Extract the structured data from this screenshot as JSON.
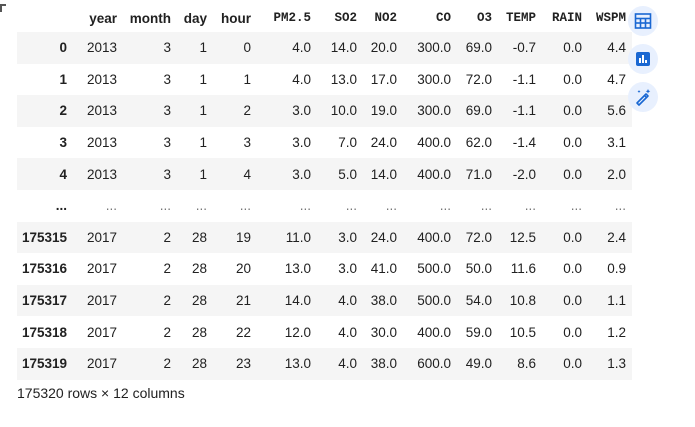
{
  "dataframe": {
    "columns": [
      "year",
      "month",
      "day",
      "hour",
      "PM2.5",
      "SO2",
      "NO2",
      "CO",
      "O3",
      "TEMP",
      "RAIN",
      "WSPM"
    ],
    "rows": [
      {
        "index": "0",
        "cells": [
          "2013",
          "3",
          "1",
          "0",
          "4.0",
          "14.0",
          "20.0",
          "300.0",
          "69.0",
          "-0.7",
          "0.0",
          "4.4"
        ]
      },
      {
        "index": "1",
        "cells": [
          "2013",
          "3",
          "1",
          "1",
          "4.0",
          "13.0",
          "17.0",
          "300.0",
          "72.0",
          "-1.1",
          "0.0",
          "4.7"
        ]
      },
      {
        "index": "2",
        "cells": [
          "2013",
          "3",
          "1",
          "2",
          "3.0",
          "10.0",
          "19.0",
          "300.0",
          "69.0",
          "-1.1",
          "0.0",
          "5.6"
        ]
      },
      {
        "index": "3",
        "cells": [
          "2013",
          "3",
          "1",
          "3",
          "3.0",
          "7.0",
          "24.0",
          "400.0",
          "62.0",
          "-1.4",
          "0.0",
          "3.1"
        ]
      },
      {
        "index": "4",
        "cells": [
          "2013",
          "3",
          "1",
          "4",
          "3.0",
          "5.0",
          "14.0",
          "400.0",
          "71.0",
          "-2.0",
          "0.0",
          "2.0"
        ]
      },
      {
        "index": "...",
        "cells": [
          "...",
          "...",
          "...",
          "...",
          "...",
          "...",
          "...",
          "...",
          "...",
          "...",
          "...",
          "..."
        ]
      },
      {
        "index": "175315",
        "cells": [
          "2017",
          "2",
          "28",
          "19",
          "11.0",
          "3.0",
          "24.0",
          "400.0",
          "72.0",
          "12.5",
          "0.0",
          "2.4"
        ]
      },
      {
        "index": "175316",
        "cells": [
          "2017",
          "2",
          "28",
          "20",
          "13.0",
          "3.0",
          "41.0",
          "500.0",
          "50.0",
          "11.6",
          "0.0",
          "0.9"
        ]
      },
      {
        "index": "175317",
        "cells": [
          "2017",
          "2",
          "28",
          "21",
          "14.0",
          "4.0",
          "38.0",
          "500.0",
          "54.0",
          "10.8",
          "0.0",
          "1.1"
        ]
      },
      {
        "index": "175318",
        "cells": [
          "2017",
          "2",
          "28",
          "22",
          "12.0",
          "4.0",
          "30.0",
          "400.0",
          "59.0",
          "10.5",
          "0.0",
          "1.2"
        ]
      },
      {
        "index": "175319",
        "cells": [
          "2017",
          "2",
          "28",
          "23",
          "13.0",
          "4.0",
          "38.0",
          "600.0",
          "49.0",
          "8.6",
          "0.0",
          "1.3"
        ]
      }
    ],
    "shape_text": "175320 rows × 12 columns"
  },
  "side_buttons": [
    {
      "icon": "table-icon"
    },
    {
      "icon": "bar-chart-icon"
    },
    {
      "icon": "magic-wand-icon"
    }
  ],
  "colors": {
    "accent": "#1967d2",
    "button_bg": "#e8f0fe",
    "stripe": "#f5f5f5"
  }
}
